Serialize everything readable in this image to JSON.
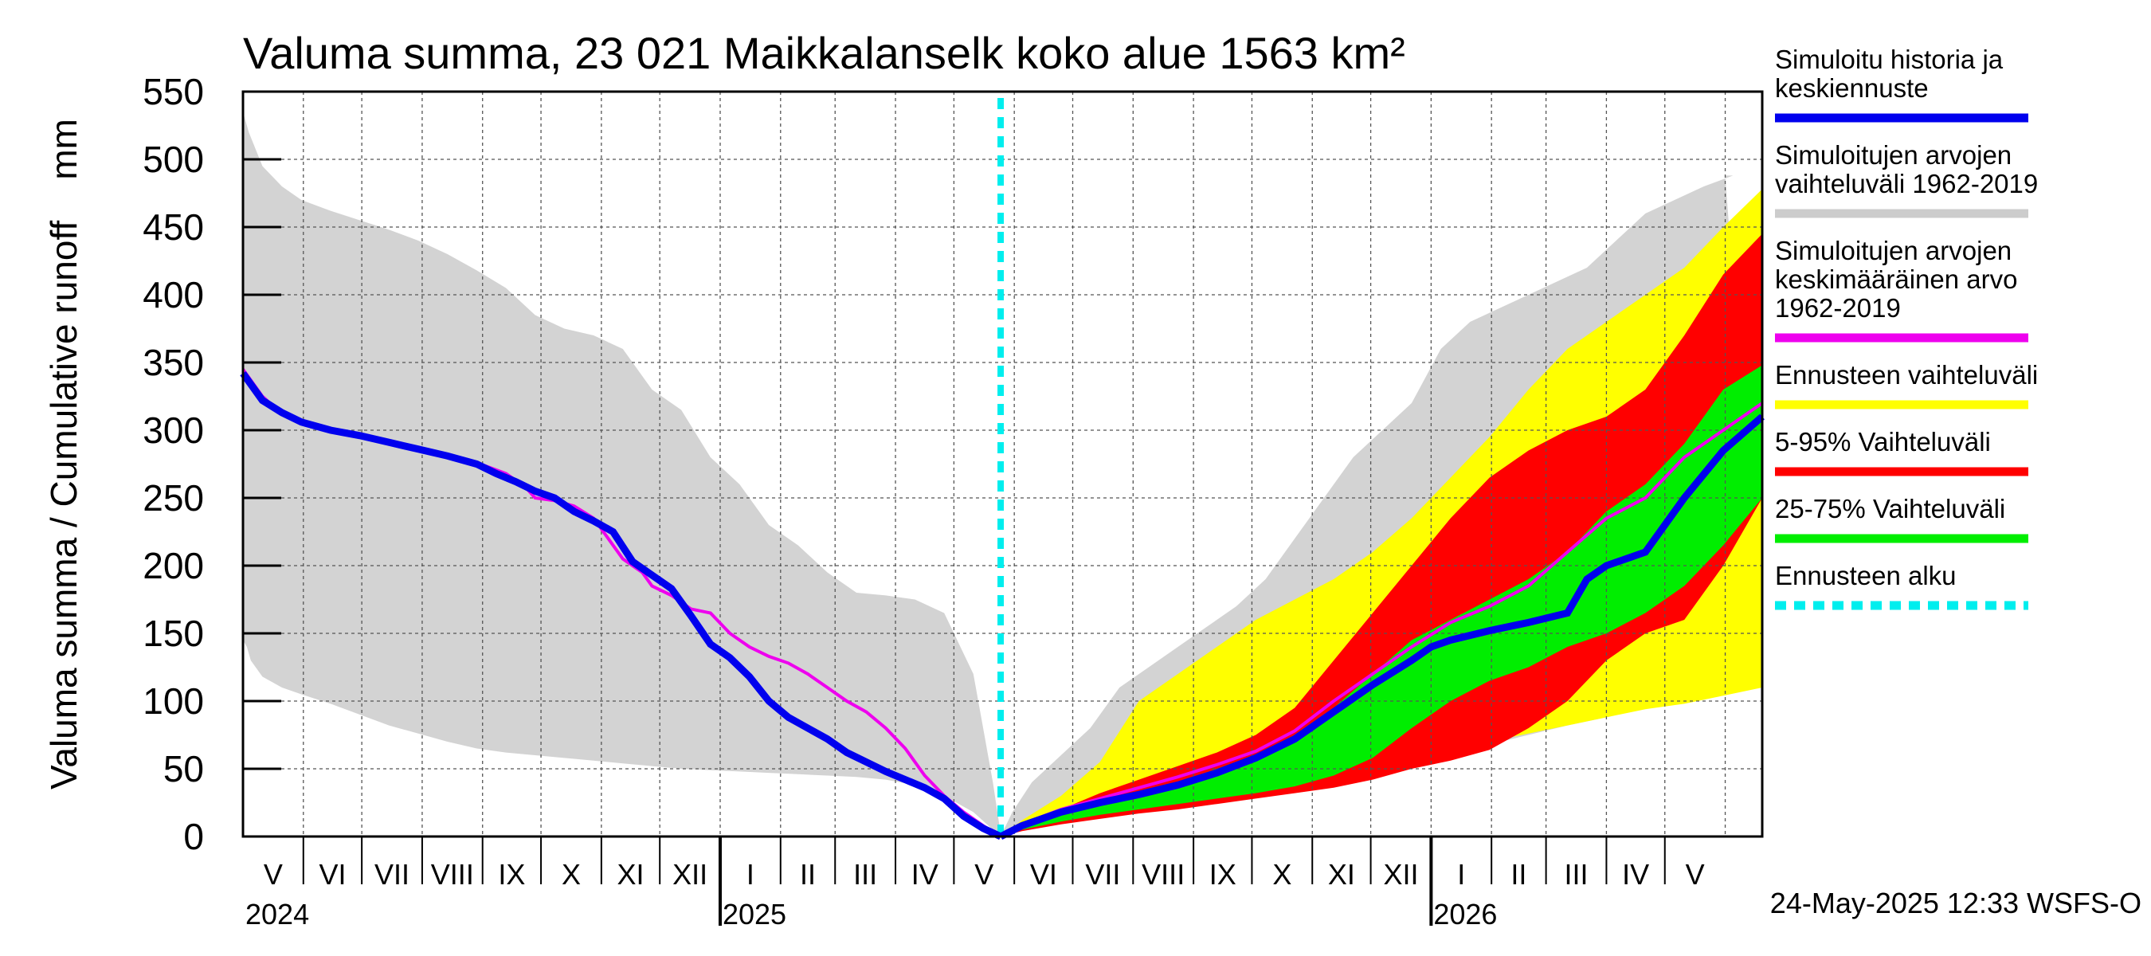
{
  "chart_data": {
    "type": "area",
    "title": "Valuma summa, 23 021 Maikkalanselk koko alue 1563 km²",
    "ylabel": "Valuma summa / Cumulative runoff    mm",
    "ylim": [
      0,
      550
    ],
    "y_ticks": [
      "0",
      "50",
      "100",
      "150",
      "200",
      "250",
      "300",
      "350",
      "400",
      "450",
      "500",
      "550"
    ],
    "x_range": [
      "2024-05-01",
      "2026-05-31"
    ],
    "forecast_start": "2025-05-24",
    "month_labels": [
      "V",
      "VI",
      "VII",
      "VIII",
      "IX",
      "X",
      "XI",
      "XII",
      "I",
      "II",
      "III",
      "IV",
      "V",
      "VI",
      "VII",
      "VIII",
      "IX",
      "X",
      "XI",
      "XII",
      "I",
      "II",
      "III",
      "IV",
      "V"
    ],
    "year_labels": [
      "2024",
      "2025",
      "2026"
    ],
    "timestamp": "24-May-2025 12:33 WSFS-O",
    "legend": [
      {
        "label": "Simuloitu historia ja keskiennuste",
        "color": "#0000ee",
        "style": "solid"
      },
      {
        "label": "Simuloitujen arvojen vaihteluväli 1962-2019",
        "color": "#cccccc",
        "style": "solid"
      },
      {
        "label": "Simuloitujen arvojen keskimääräinen arvo 1962-2019",
        "color": "#ee00ee",
        "style": "solid"
      },
      {
        "label": "Ennusteen vaihteluväli",
        "color": "#ffff00",
        "style": "solid"
      },
      {
        "label": "5-95% Vaihteluväli",
        "color": "#ff0000",
        "style": "solid"
      },
      {
        "label": "25-75% Vaihteluväli",
        "color": "#00ee00",
        "style": "solid"
      },
      {
        "label": "Ennusteen alku",
        "color": "#00eeee",
        "style": "dashed"
      }
    ],
    "legend_lines": [
      [
        "Simuloitu historia ja",
        "keskiennuste"
      ],
      [
        "Simuloitujen arvojen",
        "vaihteluväli 1962-2019"
      ],
      [
        "Simuloitujen arvojen",
        "keskimääräinen arvo",
        "   1962-2019"
      ],
      [
        "Ennusteen vaihteluväli"
      ],
      [
        "5-95% Vaihteluväli"
      ],
      [
        "25-75% Vaihteluväli"
      ],
      [
        "Ennusteen alku"
      ]
    ],
    "series": [
      {
        "name": "history_range_upper",
        "color": "#d0d0d0",
        "x": [
          0,
          3,
          10,
          20,
          30,
          45,
          60,
          75,
          90,
          105,
          120,
          135,
          150,
          165,
          180,
          195,
          210,
          225,
          240,
          255,
          270,
          285,
          300,
          315,
          330,
          345,
          360,
          375,
          380,
          385,
          389
        ],
        "values": [
          535,
          520,
          495,
          480,
          470,
          462,
          455,
          448,
          440,
          430,
          418,
          405,
          385,
          375,
          370,
          360,
          330,
          315,
          280,
          260,
          230,
          215,
          195,
          180,
          178,
          175,
          165,
          120,
          80,
          40,
          2
        ]
      },
      {
        "name": "history_range_lower",
        "color": "#d0d0d0",
        "x": [
          0,
          2,
          4,
          10,
          20,
          30,
          45,
          60,
          75,
          90,
          105,
          120,
          135,
          150,
          165,
          180,
          195,
          210,
          225,
          240,
          255,
          270,
          285,
          300,
          315,
          330,
          345,
          360,
          375,
          385,
          389
        ],
        "values": [
          145,
          140,
          130,
          118,
          110,
          105,
          98,
          90,
          82,
          76,
          70,
          65,
          62,
          60,
          58,
          56,
          54,
          52,
          50,
          49,
          48,
          47,
          46,
          45,
          44,
          42,
          38,
          30,
          18,
          5,
          0
        ]
      },
      {
        "name": "history_mean",
        "color": "#ee00ee",
        "x": [
          0,
          10,
          20,
          30,
          45,
          60,
          75,
          90,
          105,
          120,
          135,
          145,
          150,
          160,
          170,
          180,
          195,
          205,
          210,
          220,
          230,
          240,
          250,
          260,
          270,
          280,
          290,
          300,
          310,
          320,
          330,
          340,
          350,
          360,
          370,
          380,
          389
        ],
        "values": [
          345,
          325,
          312,
          305,
          300,
          296,
          292,
          287,
          282,
          276,
          268,
          258,
          250,
          248,
          244,
          235,
          205,
          195,
          185,
          178,
          168,
          165,
          150,
          140,
          133,
          128,
          120,
          110,
          100,
          92,
          80,
          65,
          45,
          30,
          18,
          8,
          0
        ]
      },
      {
        "name": "simulated_history",
        "color": "#0000ee",
        "x": [
          0,
          10,
          20,
          30,
          45,
          60,
          75,
          90,
          105,
          120,
          130,
          140,
          150,
          160,
          170,
          180,
          190,
          200,
          210,
          220,
          230,
          240,
          250,
          260,
          270,
          280,
          290,
          300,
          310,
          320,
          330,
          340,
          350,
          360,
          370,
          380,
          389
        ],
        "values": [
          342,
          322,
          313,
          306,
          300,
          296,
          291,
          286,
          281,
          275,
          268,
          262,
          255,
          250,
          240,
          233,
          225,
          203,
          193,
          183,
          163,
          142,
          132,
          118,
          100,
          88,
          80,
          72,
          62,
          55,
          48,
          42,
          36,
          28,
          15,
          6,
          0
        ]
      },
      {
        "name": "all_range_upper",
        "color": "#d0d0d0",
        "x": [
          389,
          395,
          405,
          420,
          435,
          450,
          465,
          480,
          495,
          510,
          525,
          540,
          555,
          570,
          585,
          600,
          615,
          630,
          645,
          660,
          675,
          690,
          705,
          720,
          735,
          750,
          765,
          780,
          761
        ],
        "values": [
          0,
          18,
          40,
          60,
          80,
          110,
          125,
          140,
          155,
          170,
          190,
          220,
          250,
          280,
          300,
          320,
          360,
          380,
          390,
          400,
          410,
          420,
          440,
          460,
          470,
          480,
          488,
          488,
          488
        ]
      },
      {
        "name": "all_range_lower",
        "color": "#d0d0d0",
        "x": [
          389,
          400,
          420,
          440,
          460,
          480,
          500,
          520,
          540,
          560,
          580,
          600,
          620,
          640,
          660,
          680,
          700,
          720,
          740,
          760,
          780
        ],
        "values": [
          0,
          6,
          12,
          18,
          22,
          26,
          30,
          33,
          37,
          42,
          48,
          55,
          60,
          68,
          75,
          82,
          88,
          95,
          102,
          110,
          122
        ]
      },
      {
        "name": "forecast_range_upper",
        "color": "#ffff00",
        "x": [
          389,
          400,
          420,
          440,
          460,
          480,
          500,
          520,
          540,
          560,
          580,
          600,
          620,
          640,
          660,
          680,
          700,
          720,
          740,
          760,
          780
        ],
        "values": [
          0,
          12,
          30,
          55,
          100,
          120,
          140,
          160,
          175,
          190,
          210,
          235,
          265,
          295,
          330,
          360,
          380,
          400,
          420,
          450,
          478
        ]
      },
      {
        "name": "forecast_range_lower",
        "color": "#ffff00",
        "x": [
          389,
          400,
          420,
          440,
          460,
          480,
          500,
          520,
          540,
          560,
          580,
          600,
          620,
          640,
          660,
          680,
          700,
          720,
          740,
          760,
          780
        ],
        "values": [
          0,
          5,
          11,
          16,
          20,
          25,
          29,
          33,
          37,
          42,
          48,
          56,
          62,
          70,
          76,
          82,
          88,
          94,
          98,
          104,
          110
        ]
      },
      {
        "name": "p5_95_upper",
        "color": "#ff0000",
        "x": [
          389,
          400,
          420,
          440,
          460,
          480,
          500,
          520,
          540,
          560,
          580,
          600,
          620,
          640,
          660,
          680,
          700,
          720,
          740,
          760,
          780
        ],
        "values": [
          0,
          8,
          20,
          32,
          42,
          52,
          62,
          75,
          95,
          130,
          165,
          200,
          235,
          265,
          285,
          300,
          310,
          330,
          370,
          415,
          445
        ]
      },
      {
        "name": "p5_95_lower",
        "color": "#ff0000",
        "x": [
          389,
          400,
          420,
          440,
          460,
          480,
          500,
          520,
          540,
          560,
          580,
          600,
          620,
          640,
          660,
          680,
          700,
          720,
          740,
          760,
          780
        ],
        "values": [
          0,
          4,
          9,
          13,
          17,
          20,
          24,
          28,
          32,
          36,
          42,
          50,
          56,
          64,
          80,
          100,
          130,
          150,
          160,
          200,
          250
        ]
      },
      {
        "name": "p25_75_upper",
        "color": "#00ee00",
        "x": [
          389,
          400,
          420,
          440,
          460,
          480,
          500,
          520,
          540,
          560,
          580,
          600,
          620,
          640,
          660,
          680,
          700,
          720,
          740,
          760,
          780
        ],
        "values": [
          0,
          7,
          16,
          24,
          32,
          40,
          50,
          60,
          75,
          95,
          120,
          145,
          160,
          175,
          190,
          210,
          240,
          260,
          290,
          330,
          348
        ]
      },
      {
        "name": "p25_75_lower",
        "color": "#00ee00",
        "x": [
          389,
          400,
          420,
          440,
          460,
          480,
          500,
          520,
          540,
          560,
          580,
          600,
          620,
          640,
          660,
          680,
          700,
          720,
          740,
          760,
          780
        ],
        "values": [
          0,
          5,
          11,
          16,
          20,
          24,
          28,
          32,
          37,
          45,
          58,
          80,
          100,
          115,
          125,
          140,
          150,
          165,
          185,
          215,
          250
        ]
      },
      {
        "name": "forecast_mean",
        "color": "#0000ee",
        "x": [
          389,
          400,
          420,
          440,
          460,
          480,
          500,
          520,
          540,
          560,
          580,
          600,
          610,
          620,
          640,
          660,
          680,
          690,
          700,
          720,
          740,
          760,
          780
        ],
        "values": [
          0,
          8,
          18,
          25,
          31,
          38,
          47,
          58,
          72,
          92,
          112,
          130,
          140,
          145,
          152,
          158,
          165,
          190,
          200,
          210,
          250,
          285,
          310
        ]
      },
      {
        "name": "forecast_mean_clim",
        "color": "#ee00ee",
        "x": [
          389,
          400,
          420,
          440,
          460,
          480,
          500,
          520,
          540,
          560,
          580,
          600,
          620,
          640,
          660,
          680,
          700,
          720,
          740,
          760,
          780
        ],
        "values": [
          0,
          9,
          20,
          28,
          36,
          44,
          53,
          63,
          78,
          100,
          120,
          140,
          158,
          170,
          185,
          210,
          235,
          250,
          280,
          300,
          320
        ]
      }
    ]
  }
}
